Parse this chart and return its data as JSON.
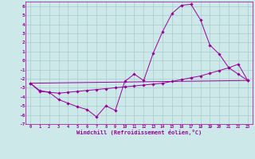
{
  "xlabel": "Windchill (Refroidissement éolien,°C)",
  "background_color": "#cce8e8",
  "grid_color": "#aacccc",
  "line_color": "#990099",
  "xlim": [
    -0.5,
    23.5
  ],
  "ylim": [
    -7,
    6.5
  ],
  "xticks": [
    0,
    1,
    2,
    3,
    4,
    5,
    6,
    7,
    8,
    9,
    10,
    11,
    12,
    13,
    14,
    15,
    16,
    17,
    18,
    19,
    20,
    21,
    22,
    23
  ],
  "yticks": [
    -7,
    -6,
    -5,
    -4,
    -3,
    -2,
    -1,
    0,
    1,
    2,
    3,
    4,
    5,
    6
  ],
  "series1": [
    [
      0,
      -2.5
    ],
    [
      1,
      -3.4
    ],
    [
      2,
      -3.5
    ],
    [
      3,
      -4.3
    ],
    [
      4,
      -4.7
    ],
    [
      5,
      -5.1
    ],
    [
      6,
      -5.4
    ],
    [
      7,
      -6.2
    ],
    [
      8,
      -5.0
    ],
    [
      9,
      -5.5
    ],
    [
      10,
      -2.3
    ],
    [
      11,
      -1.5
    ],
    [
      12,
      -2.2
    ],
    [
      13,
      0.8
    ],
    [
      14,
      3.2
    ],
    [
      15,
      5.2
    ],
    [
      16,
      6.1
    ],
    [
      17,
      6.2
    ],
    [
      18,
      4.5
    ],
    [
      19,
      1.7
    ],
    [
      20,
      0.7
    ],
    [
      21,
      -0.8
    ],
    [
      22,
      -1.5
    ],
    [
      23,
      -2.2
    ]
  ],
  "series2": [
    [
      0,
      -2.5
    ],
    [
      1,
      -3.3
    ],
    [
      2,
      -3.5
    ],
    [
      3,
      -3.6
    ],
    [
      4,
      -3.5
    ],
    [
      5,
      -3.4
    ],
    [
      6,
      -3.3
    ],
    [
      7,
      -3.2
    ],
    [
      8,
      -3.1
    ],
    [
      9,
      -3.0
    ],
    [
      10,
      -2.9
    ],
    [
      11,
      -2.8
    ],
    [
      12,
      -2.7
    ],
    [
      13,
      -2.6
    ],
    [
      14,
      -2.5
    ],
    [
      15,
      -2.3
    ],
    [
      16,
      -2.1
    ],
    [
      17,
      -1.9
    ],
    [
      18,
      -1.7
    ],
    [
      19,
      -1.4
    ],
    [
      20,
      -1.1
    ],
    [
      21,
      -0.8
    ],
    [
      22,
      -0.4
    ],
    [
      23,
      -2.2
    ]
  ],
  "series3": [
    [
      0,
      -2.5
    ],
    [
      23,
      -2.2
    ]
  ]
}
